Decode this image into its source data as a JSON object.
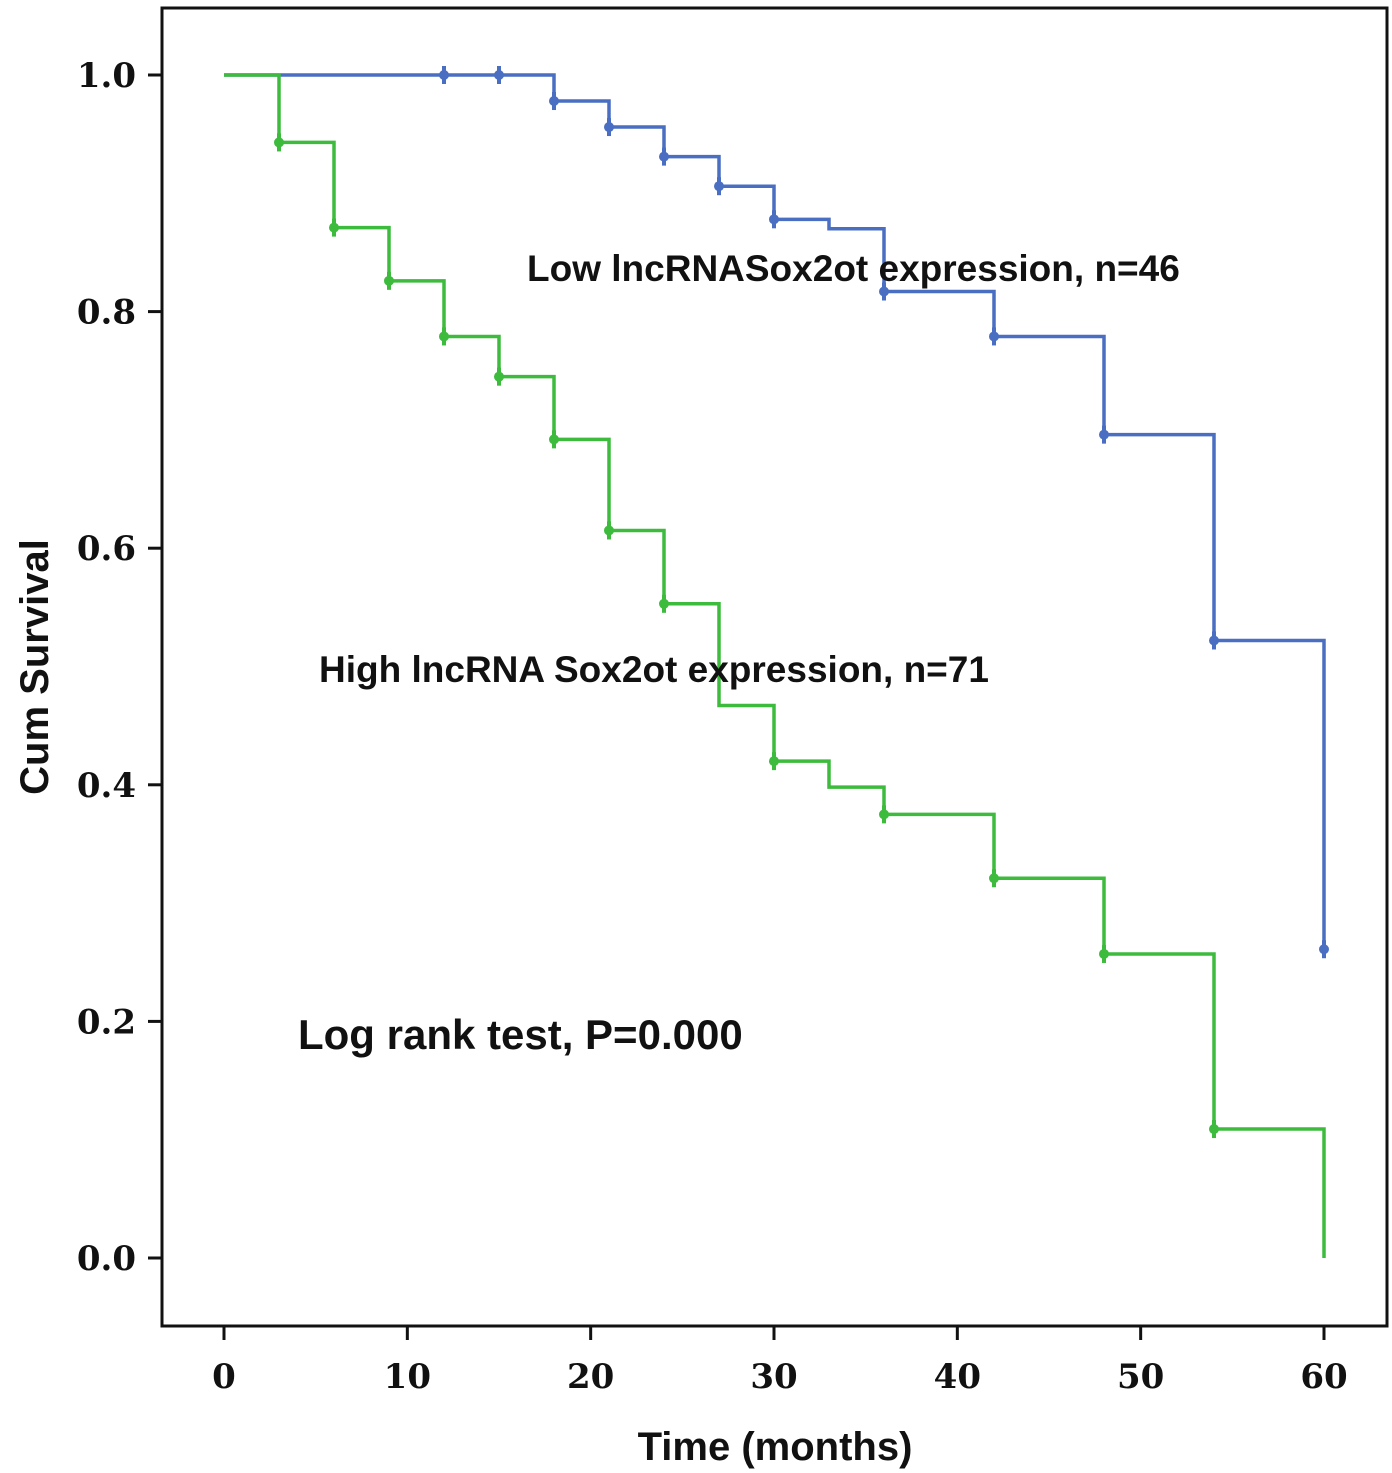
{
  "chart_data": {
    "type": "line",
    "subtype": "kaplan-meier",
    "title": "",
    "xlabel": "Time (months)",
    "ylabel": "Cum Survival",
    "xlim": [
      0,
      60
    ],
    "ylim": [
      0.0,
      1.0
    ],
    "x_ticks": [
      "0",
      "10",
      "20",
      "30",
      "40",
      "50",
      "60"
    ],
    "y_ticks": [
      "0.0",
      "0.2",
      "0.4",
      "0.6",
      "0.8",
      "1.0"
    ],
    "grid": false,
    "series": [
      {
        "name": "Low lncRNASox2ot expression, n=46",
        "color": "#4a6fc2",
        "steps": [
          [
            0,
            1.0
          ],
          [
            18,
            0.978
          ],
          [
            21,
            0.956
          ],
          [
            24,
            0.931
          ],
          [
            27,
            0.906
          ],
          [
            30,
            0.878
          ],
          [
            33,
            0.87
          ],
          [
            36,
            0.817
          ],
          [
            42,
            0.779
          ],
          [
            48,
            0.696
          ],
          [
            54,
            0.522
          ],
          [
            60,
            0.261
          ]
        ],
        "censored": [
          [
            12,
            1.0
          ],
          [
            15,
            1.0
          ],
          [
            18,
            0.978
          ],
          [
            21,
            0.956
          ],
          [
            24,
            0.931
          ],
          [
            27,
            0.906
          ],
          [
            30,
            0.878
          ],
          [
            36,
            0.817
          ],
          [
            42,
            0.779
          ],
          [
            48,
            0.696
          ],
          [
            54,
            0.522
          ],
          [
            60,
            0.261
          ]
        ]
      },
      {
        "name": "High lncRNA Sox2ot expression, n=71",
        "color": "#3dbb3d",
        "steps": [
          [
            0,
            1.0
          ],
          [
            3,
            0.943
          ],
          [
            6,
            0.871
          ],
          [
            9,
            0.826
          ],
          [
            12,
            0.779
          ],
          [
            15,
            0.745
          ],
          [
            18,
            0.692
          ],
          [
            21,
            0.615
          ],
          [
            24,
            0.553
          ],
          [
            27,
            0.467
          ],
          [
            30,
            0.42
          ],
          [
            33,
            0.398
          ],
          [
            36,
            0.375
          ],
          [
            42,
            0.321
          ],
          [
            48,
            0.257
          ],
          [
            54,
            0.109
          ],
          [
            60,
            0.0
          ]
        ],
        "censored": [
          [
            3,
            0.943
          ],
          [
            6,
            0.871
          ],
          [
            9,
            0.826
          ],
          [
            12,
            0.779
          ],
          [
            15,
            0.745
          ],
          [
            18,
            0.692
          ],
          [
            21,
            0.615
          ],
          [
            24,
            0.553
          ],
          [
            30,
            0.42
          ],
          [
            36,
            0.375
          ],
          [
            42,
            0.321
          ],
          [
            48,
            0.257
          ],
          [
            54,
            0.109
          ]
        ]
      }
    ],
    "annotations": [
      "Low lncRNASox2ot expression, n=46",
      "High lncRNA Sox2ot expression, n=71",
      "Log rank test, P=0.000"
    ]
  }
}
